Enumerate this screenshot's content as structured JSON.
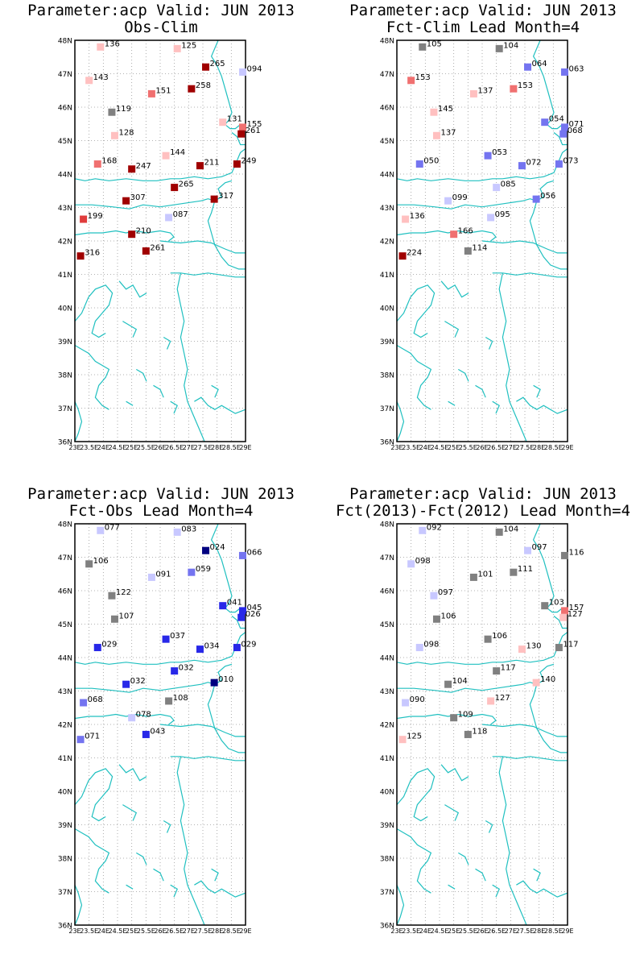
{
  "colors": {
    "coast": "#20c0c0",
    "grid": "#999999",
    "frame": "#000000",
    "scale": {
      "very_low": "#000080",
      "low": "#2828e8",
      "mid_low": "#7474f0",
      "slightly_low": "#c8c8ff",
      "neutral": "#808080",
      "slightly_high": "#ffc0c0",
      "mid_high": "#f07070",
      "high": "#e03c3c",
      "very_high": "#a00000"
    }
  },
  "axes": {
    "lat_labels": [
      "36N",
      "37N",
      "38N",
      "39N",
      "40N",
      "41N",
      "42N",
      "43N",
      "44N",
      "45N",
      "46N",
      "47N",
      "48N"
    ],
    "lon_labels": [
      "23E",
      "23.5E",
      "24E",
      "24.5E",
      "25E",
      "25.5E",
      "26E",
      "26.5E",
      "27E",
      "27.5E",
      "28E",
      "28.5E",
      "29E"
    ]
  },
  "panels": [
    {
      "title1": "Parameter:acp Valid: JUN 2013",
      "title2": "Obs-Clim",
      "stations": [
        {
          "lat": 47.8,
          "lon": 23.9,
          "label": "136",
          "color": "slightly_high"
        },
        {
          "lat": 47.75,
          "lon": 26.6,
          "label": "125",
          "color": "slightly_high"
        },
        {
          "lat": 47.2,
          "lon": 27.6,
          "label": "265",
          "color": "very_high"
        },
        {
          "lat": 47.05,
          "lon": 28.9,
          "label": "094",
          "color": "slightly_low"
        },
        {
          "lat": 46.8,
          "lon": 23.5,
          "label": "143",
          "color": "slightly_high"
        },
        {
          "lat": 46.55,
          "lon": 27.1,
          "label": "258",
          "color": "very_high"
        },
        {
          "lat": 46.4,
          "lon": 25.7,
          "label": "151",
          "color": "mid_high"
        },
        {
          "lat": 45.85,
          "lon": 24.3,
          "label": "119",
          "color": "neutral"
        },
        {
          "lat": 45.55,
          "lon": 28.2,
          "label": "131",
          "color": "slightly_high"
        },
        {
          "lat": 45.4,
          "lon": 28.9,
          "label": "155",
          "color": "mid_high"
        },
        {
          "lat": 45.2,
          "lon": 28.85,
          "label": "261",
          "color": "very_high"
        },
        {
          "lat": 45.15,
          "lon": 24.4,
          "label": "128",
          "color": "slightly_high"
        },
        {
          "lat": 44.55,
          "lon": 26.2,
          "label": "144",
          "color": "slightly_high"
        },
        {
          "lat": 44.3,
          "lon": 23.8,
          "label": "168",
          "color": "mid_high"
        },
        {
          "lat": 44.25,
          "lon": 27.4,
          "label": "211",
          "color": "very_high"
        },
        {
          "lat": 44.3,
          "lon": 28.7,
          "label": "249",
          "color": "very_high"
        },
        {
          "lat": 44.15,
          "lon": 25.0,
          "label": "247",
          "color": "very_high"
        },
        {
          "lat": 43.6,
          "lon": 26.5,
          "label": "265",
          "color": "very_high"
        },
        {
          "lat": 43.25,
          "lon": 27.9,
          "label": "317",
          "color": "very_high"
        },
        {
          "lat": 43.2,
          "lon": 24.8,
          "label": "307",
          "color": "very_high"
        },
        {
          "lat": 42.7,
          "lon": 26.3,
          "label": "087",
          "color": "slightly_low"
        },
        {
          "lat": 42.65,
          "lon": 23.3,
          "label": "199",
          "color": "high"
        },
        {
          "lat": 42.2,
          "lon": 25.0,
          "label": "210",
          "color": "very_high"
        },
        {
          "lat": 41.7,
          "lon": 25.5,
          "label": "261",
          "color": "very_high"
        },
        {
          "lat": 41.55,
          "lon": 23.2,
          "label": "316",
          "color": "very_high"
        }
      ]
    },
    {
      "title1": "Parameter:acp Valid: JUN 2013",
      "title2": "Fct-Clim Lead Month=4",
      "stations": [
        {
          "lat": 47.8,
          "lon": 23.9,
          "label": "105",
          "color": "neutral"
        },
        {
          "lat": 47.75,
          "lon": 26.6,
          "label": "104",
          "color": "neutral"
        },
        {
          "lat": 47.2,
          "lon": 27.6,
          "label": "064",
          "color": "mid_low"
        },
        {
          "lat": 47.05,
          "lon": 28.9,
          "label": "063",
          "color": "mid_low"
        },
        {
          "lat": 46.8,
          "lon": 23.5,
          "label": "153",
          "color": "mid_high"
        },
        {
          "lat": 46.55,
          "lon": 27.1,
          "label": "153",
          "color": "mid_high"
        },
        {
          "lat": 46.4,
          "lon": 25.7,
          "label": "137",
          "color": "slightly_high"
        },
        {
          "lat": 45.85,
          "lon": 24.3,
          "label": "145",
          "color": "slightly_high"
        },
        {
          "lat": 45.55,
          "lon": 28.2,
          "label": "054",
          "color": "mid_low"
        },
        {
          "lat": 45.4,
          "lon": 28.9,
          "label": "071",
          "color": "mid_low"
        },
        {
          "lat": 45.2,
          "lon": 28.85,
          "label": "068",
          "color": "mid_low"
        },
        {
          "lat": 45.15,
          "lon": 24.4,
          "label": "137",
          "color": "slightly_high"
        },
        {
          "lat": 44.55,
          "lon": 26.2,
          "label": "053",
          "color": "mid_low"
        },
        {
          "lat": 44.3,
          "lon": 23.8,
          "label": "050",
          "color": "mid_low"
        },
        {
          "lat": 44.25,
          "lon": 27.4,
          "label": "072",
          "color": "mid_low"
        },
        {
          "lat": 44.3,
          "lon": 28.7,
          "label": "073",
          "color": "mid_low"
        },
        {
          "lat": 43.6,
          "lon": 26.5,
          "label": "085",
          "color": "slightly_low"
        },
        {
          "lat": 43.25,
          "lon": 27.9,
          "label": "056",
          "color": "mid_low"
        },
        {
          "lat": 43.2,
          "lon": 24.8,
          "label": "099",
          "color": "slightly_low"
        },
        {
          "lat": 42.7,
          "lon": 26.3,
          "label": "095",
          "color": "slightly_low"
        },
        {
          "lat": 42.65,
          "lon": 23.3,
          "label": "136",
          "color": "slightly_high"
        },
        {
          "lat": 42.2,
          "lon": 25.0,
          "label": "166",
          "color": "mid_high"
        },
        {
          "lat": 41.7,
          "lon": 25.5,
          "label": "114",
          "color": "neutral"
        },
        {
          "lat": 41.55,
          "lon": 23.2,
          "label": "224",
          "color": "very_high"
        }
      ]
    },
    {
      "title1": "Parameter:acp Valid: JUN 2013",
      "title2": "Fct-Obs Lead Month=4",
      "stations": [
        {
          "lat": 47.8,
          "lon": 23.9,
          "label": "077",
          "color": "slightly_low"
        },
        {
          "lat": 47.75,
          "lon": 26.6,
          "label": "083",
          "color": "slightly_low"
        },
        {
          "lat": 47.2,
          "lon": 27.6,
          "label": "024",
          "color": "very_low"
        },
        {
          "lat": 47.05,
          "lon": 28.9,
          "label": "066",
          "color": "mid_low"
        },
        {
          "lat": 46.8,
          "lon": 23.5,
          "label": "106",
          "color": "neutral"
        },
        {
          "lat": 46.55,
          "lon": 27.1,
          "label": "059",
          "color": "mid_low"
        },
        {
          "lat": 46.4,
          "lon": 25.7,
          "label": "091",
          "color": "slightly_low"
        },
        {
          "lat": 45.85,
          "lon": 24.3,
          "label": "122",
          "color": "neutral"
        },
        {
          "lat": 45.55,
          "lon": 28.2,
          "label": "041",
          "color": "low"
        },
        {
          "lat": 45.4,
          "lon": 28.9,
          "label": "045",
          "color": "low"
        },
        {
          "lat": 45.2,
          "lon": 28.85,
          "label": "026",
          "color": "low"
        },
        {
          "lat": 45.15,
          "lon": 24.4,
          "label": "107",
          "color": "neutral"
        },
        {
          "lat": 44.55,
          "lon": 26.2,
          "label": "037",
          "color": "low"
        },
        {
          "lat": 44.3,
          "lon": 23.8,
          "label": "029",
          "color": "low"
        },
        {
          "lat": 44.25,
          "lon": 27.4,
          "label": "034",
          "color": "low"
        },
        {
          "lat": 44.3,
          "lon": 28.7,
          "label": "029",
          "color": "low"
        },
        {
          "lat": 43.6,
          "lon": 26.5,
          "label": "032",
          "color": "low"
        },
        {
          "lat": 43.25,
          "lon": 27.9,
          "label": "010",
          "color": "very_low"
        },
        {
          "lat": 43.2,
          "lon": 24.8,
          "label": "032",
          "color": "low"
        },
        {
          "lat": 42.7,
          "lon": 26.3,
          "label": "108",
          "color": "neutral"
        },
        {
          "lat": 42.65,
          "lon": 23.3,
          "label": "068",
          "color": "mid_low"
        },
        {
          "lat": 42.2,
          "lon": 25.0,
          "label": "078",
          "color": "slightly_low"
        },
        {
          "lat": 41.7,
          "lon": 25.5,
          "label": "043",
          "color": "low"
        },
        {
          "lat": 41.55,
          "lon": 23.2,
          "label": "071",
          "color": "mid_low"
        }
      ]
    },
    {
      "title1": "Parameter:acp Valid: JUN 2013",
      "title2": "Fct(2013)-Fct(2012) Lead Month=4",
      "stations": [
        {
          "lat": 47.8,
          "lon": 23.9,
          "label": "092",
          "color": "slightly_low"
        },
        {
          "lat": 47.75,
          "lon": 26.6,
          "label": "104",
          "color": "neutral"
        },
        {
          "lat": 47.2,
          "lon": 27.6,
          "label": "097",
          "color": "slightly_low"
        },
        {
          "lat": 47.05,
          "lon": 28.9,
          "label": "116",
          "color": "neutral"
        },
        {
          "lat": 46.8,
          "lon": 23.5,
          "label": "098",
          "color": "slightly_low"
        },
        {
          "lat": 46.55,
          "lon": 27.1,
          "label": "111",
          "color": "neutral"
        },
        {
          "lat": 46.4,
          "lon": 25.7,
          "label": "101",
          "color": "neutral"
        },
        {
          "lat": 45.85,
          "lon": 24.3,
          "label": "097",
          "color": "slightly_low"
        },
        {
          "lat": 45.55,
          "lon": 28.2,
          "label": "103",
          "color": "neutral"
        },
        {
          "lat": 45.4,
          "lon": 28.9,
          "label": "157",
          "color": "mid_high"
        },
        {
          "lat": 45.2,
          "lon": 28.85,
          "label": "127",
          "color": "slightly_high"
        },
        {
          "lat": 45.15,
          "lon": 24.4,
          "label": "106",
          "color": "neutral"
        },
        {
          "lat": 44.55,
          "lon": 26.2,
          "label": "106",
          "color": "neutral"
        },
        {
          "lat": 44.3,
          "lon": 23.8,
          "label": "098",
          "color": "slightly_low"
        },
        {
          "lat": 44.25,
          "lon": 27.4,
          "label": "130",
          "color": "slightly_high"
        },
        {
          "lat": 44.3,
          "lon": 28.7,
          "label": "117",
          "color": "neutral"
        },
        {
          "lat": 43.6,
          "lon": 26.5,
          "label": "117",
          "color": "neutral"
        },
        {
          "lat": 43.25,
          "lon": 27.9,
          "label": "140",
          "color": "slightly_high"
        },
        {
          "lat": 43.2,
          "lon": 24.8,
          "label": "104",
          "color": "neutral"
        },
        {
          "lat": 42.7,
          "lon": 26.3,
          "label": "127",
          "color": "slightly_high"
        },
        {
          "lat": 42.65,
          "lon": 23.3,
          "label": "090",
          "color": "slightly_low"
        },
        {
          "lat": 42.2,
          "lon": 25.0,
          "label": "109",
          "color": "neutral"
        },
        {
          "lat": 41.7,
          "lon": 25.5,
          "label": "118",
          "color": "neutral"
        },
        {
          "lat": 41.55,
          "lon": 23.2,
          "label": "125",
          "color": "slightly_high"
        }
      ]
    }
  ]
}
